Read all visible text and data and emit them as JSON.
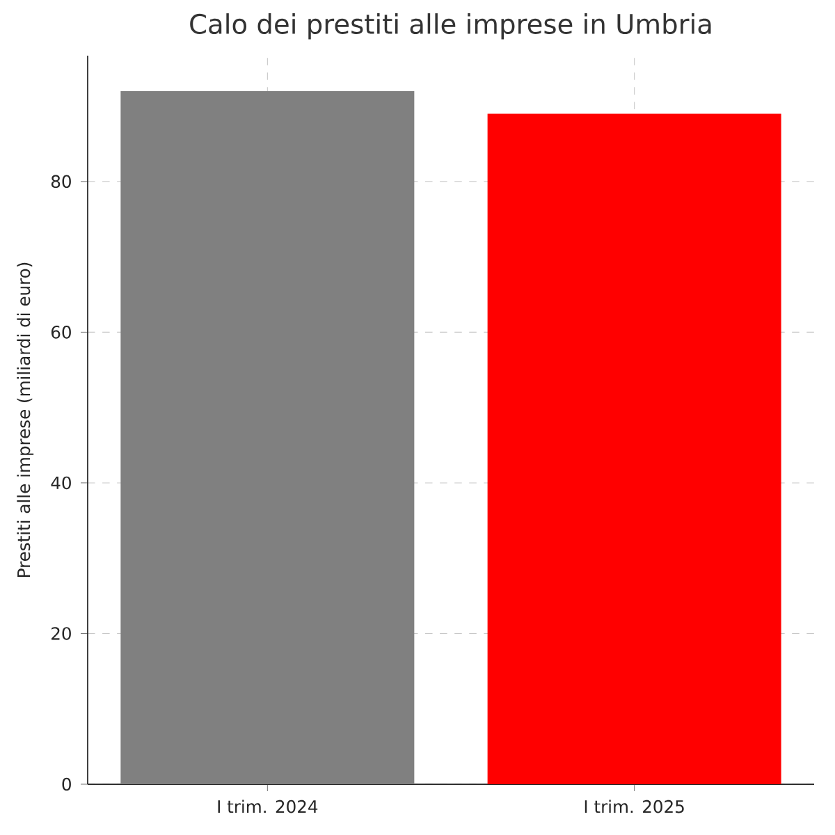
{
  "chart_data": {
    "type": "bar",
    "title": "Calo dei prestiti alle imprese in Umbria",
    "ylabel": "Prestiti alle imprese (miliardi di euro)",
    "categories": [
      "I trim. 2024",
      "I trim. 2025"
    ],
    "values": [
      92,
      89
    ],
    "colors": [
      "#808080",
      "#ff0000"
    ],
    "ylim": [
      0,
      96.7
    ],
    "yticks": [
      0,
      20,
      40,
      60,
      80
    ],
    "grid": true
  }
}
